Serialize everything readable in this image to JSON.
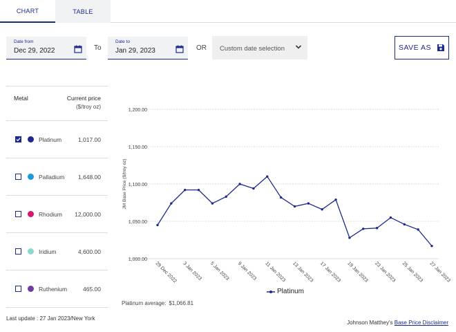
{
  "tabs": [
    {
      "label": "CHART",
      "active": true
    },
    {
      "label": "TABLE",
      "active": false
    }
  ],
  "filters": {
    "date_from": {
      "label": "Date from",
      "value": "Dec 29, 2022",
      "icon": "calendar-icon"
    },
    "to_word": "To",
    "date_to": {
      "label": "Date to",
      "value": "Jan 29, 2023",
      "icon": "calendar-icon"
    },
    "or_word": "OR",
    "custom_select": {
      "value": "Custom date selection",
      "icon": "chevron-down-icon"
    },
    "save_button": {
      "label": "SAVE AS",
      "icon": "floppy-disk-icon"
    }
  },
  "metal_table": {
    "header_metal": "Metal",
    "header_price": "Current price",
    "header_unit": "($/troy oz)",
    "rows": [
      {
        "name": "Platinum",
        "price": "1,017.00",
        "checked": true,
        "color": "#1b2a8c"
      },
      {
        "name": "Palladium",
        "price": "1,648.00",
        "checked": false,
        "color": "#1e9ad6"
      },
      {
        "name": "Rhodium",
        "price": "12,000.00",
        "checked": false,
        "color": "#d6166f"
      },
      {
        "name": "Iridium",
        "price": "4,600.00",
        "checked": false,
        "color": "#8fd6d0"
      },
      {
        "name": "Ruthenium",
        "price": "465.00",
        "checked": false,
        "color": "#6b3fa0"
      }
    ]
  },
  "last_update": "Last update : 27 Jan 2023/New York",
  "average": {
    "label": "Platinum average:",
    "value": "$1,066.81"
  },
  "disclaimer": {
    "prefix": "Johnson Matthey's ",
    "link": "Base Price Disclaimer"
  },
  "colors": {
    "accent": "#1b2a8c",
    "series": "#1b2a8c",
    "grid": "#cfcfcf"
  },
  "chart_data": {
    "type": "line",
    "ylabel": "JM Base Price ($/troy oz)",
    "ylim": [
      1000,
      1200
    ],
    "yticks": [
      "1,000.00",
      "1,050.00",
      "1,100.00",
      "1,150.00",
      "1,200.00"
    ],
    "ytick_values": [
      1000,
      1050,
      1100,
      1150,
      1200
    ],
    "xtick_labels": [
      "29 Dec 2022",
      "3 Jan 2023",
      "5 Jan 2023",
      "9 Jan 2023",
      "11 Jan 2023",
      "13 Jan 2023",
      "17 Jan 2023",
      "19 Jan 2023",
      "23 Jan 2023",
      "25 Jan 2023",
      "27 Jan 2023"
    ],
    "xtick_indices": [
      0,
      2,
      4,
      6,
      8,
      10,
      12,
      14,
      16,
      18,
      20
    ],
    "legend_position": "bottom",
    "grid": true,
    "series": [
      {
        "name": "Platinum",
        "x": [
          "29 Dec 2022",
          "30 Dec 2022",
          "3 Jan 2023",
          "4 Jan 2023",
          "5 Jan 2023",
          "6 Jan 2023",
          "9 Jan 2023",
          "10 Jan 2023",
          "11 Jan 2023",
          "12 Jan 2023",
          "13 Jan 2023",
          "16 Jan 2023",
          "17 Jan 2023",
          "18 Jan 2023",
          "19 Jan 2023",
          "20 Jan 2023",
          "23 Jan 2023",
          "24 Jan 2023",
          "25 Jan 2023",
          "26 Jan 2023",
          "27 Jan 2023"
        ],
        "values": [
          1045,
          1074,
          1092,
          1092,
          1074,
          1083,
          1100,
          1094,
          1110,
          1082,
          1070,
          1074,
          1066,
          1079,
          1028,
          1040,
          1041,
          1055,
          1046,
          1039,
          1017
        ]
      }
    ]
  }
}
